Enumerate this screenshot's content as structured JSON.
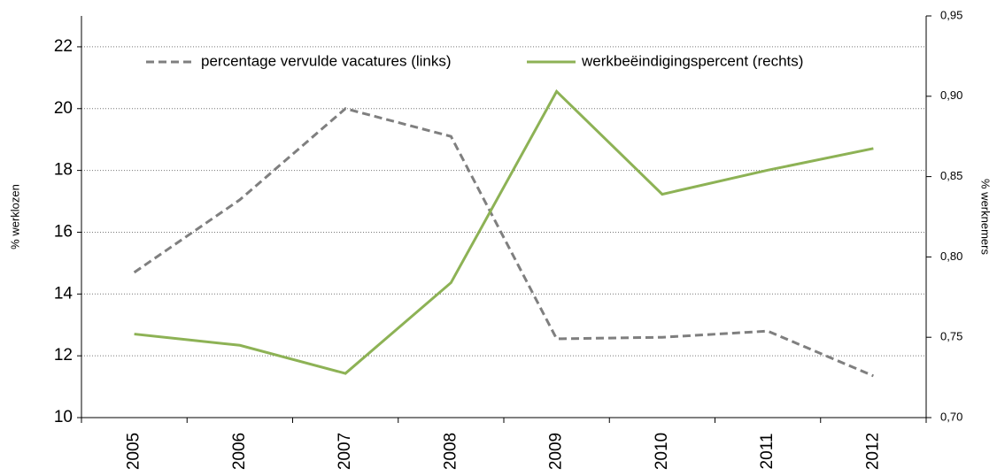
{
  "chart_data": {
    "type": "line",
    "categories": [
      "2005",
      "2006",
      "2007",
      "2008",
      "2009",
      "2010",
      "2011",
      "2012"
    ],
    "series": [
      {
        "name": "percentage vervulde vacatures (links)",
        "color": "#7f7f7f",
        "dash": true,
        "axis": "y",
        "values": [
          14.7,
          17.05,
          20.0,
          19.1,
          12.55,
          12.6,
          12.8,
          11.35
        ]
      },
      {
        "name": "werkbeëindigingspercent (rechts)",
        "color": "#8db255",
        "dash": false,
        "axis": "y2",
        "values": [
          0.752,
          0.745,
          0.7275,
          0.784,
          0.903,
          0.839,
          0.854,
          0.8675
        ]
      }
    ],
    "ylabel": "% werklozen",
    "y2label": "% werknemers",
    "ylim": [
      10,
      23
    ],
    "yticks": [
      10,
      12,
      14,
      16,
      18,
      20,
      22
    ],
    "y2lim": [
      0.7,
      0.95
    ],
    "y2ticks": [
      {
        "value": 0.7,
        "label": "0,70"
      },
      {
        "value": 0.75,
        "label": "0,75"
      },
      {
        "value": 0.8,
        "label": "0,80"
      },
      {
        "value": 0.85,
        "label": "0,85"
      },
      {
        "value": 0.9,
        "label": "0,90"
      },
      {
        "value": 0.95,
        "label": "0,95"
      }
    ],
    "grid": true,
    "legend": "top"
  }
}
